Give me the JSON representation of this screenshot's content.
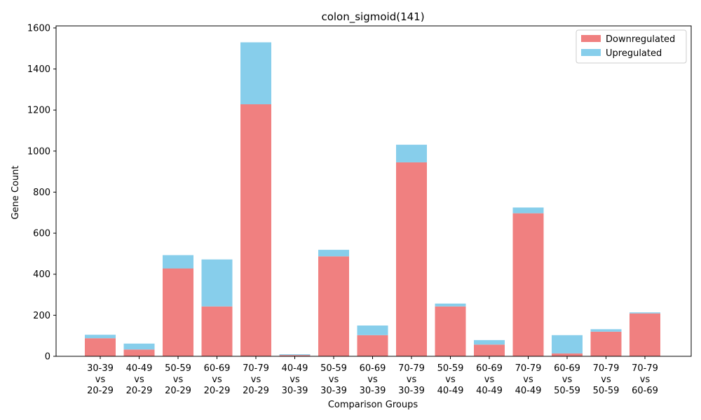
{
  "chart_data": {
    "type": "bar",
    "stacked": true,
    "title": "colon_sigmoid(141)",
    "xlabel": "Comparison Groups",
    "ylabel": "Gene Count",
    "ylim": [
      0,
      1610
    ],
    "yticks": [
      0,
      200,
      400,
      600,
      800,
      1000,
      1200,
      1400,
      1600
    ],
    "grid": false,
    "legend_position": "top-right",
    "categories": [
      [
        "30-39",
        "vs",
        "20-29"
      ],
      [
        "40-49",
        "vs",
        "20-29"
      ],
      [
        "50-59",
        "vs",
        "20-29"
      ],
      [
        "60-69",
        "vs",
        "20-29"
      ],
      [
        "70-79",
        "vs",
        "20-29"
      ],
      [
        "40-49",
        "vs",
        "30-39"
      ],
      [
        "50-59",
        "vs",
        "30-39"
      ],
      [
        "60-69",
        "vs",
        "30-39"
      ],
      [
        "70-79",
        "vs",
        "30-39"
      ],
      [
        "50-59",
        "vs",
        "40-49"
      ],
      [
        "60-69",
        "vs",
        "40-49"
      ],
      [
        "70-79",
        "vs",
        "40-49"
      ],
      [
        "60-69",
        "vs",
        "50-59"
      ],
      [
        "70-79",
        "vs",
        "50-59"
      ],
      [
        "70-79",
        "vs",
        "60-69"
      ]
    ],
    "series": [
      {
        "name": "Downregulated",
        "color": "#f08080",
        "values": [
          88,
          33,
          428,
          243,
          1228,
          6,
          487,
          103,
          945,
          243,
          57,
          697,
          14,
          120,
          209
        ]
      },
      {
        "name": "Upregulated",
        "color": "#87ceeb",
        "values": [
          17,
          29,
          65,
          229,
          302,
          4,
          32,
          47,
          86,
          14,
          22,
          28,
          89,
          12,
          5
        ]
      }
    ]
  }
}
